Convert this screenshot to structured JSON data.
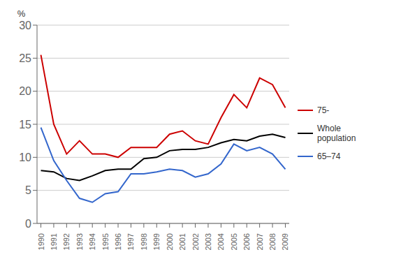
{
  "chart_data": {
    "type": "line",
    "x": [
      1990,
      1991,
      1992,
      1993,
      1994,
      1995,
      1996,
      1997,
      1998,
      1999,
      2000,
      2001,
      2002,
      2003,
      2004,
      2005,
      2006,
      2007,
      2008,
      2009
    ],
    "series": [
      {
        "name": "75-",
        "color": "#cc0000",
        "values": [
          25.5,
          15.0,
          10.5,
          12.5,
          10.5,
          10.5,
          10.0,
          11.5,
          11.5,
          11.5,
          13.5,
          14.0,
          12.5,
          12.0,
          16.0,
          19.5,
          17.5,
          22.0,
          21.0,
          17.5
        ]
      },
      {
        "name": "Whole\npopulation",
        "color": "#000000",
        "values": [
          8.0,
          7.8,
          6.8,
          6.5,
          7.2,
          8.0,
          8.2,
          8.2,
          9.8,
          10.0,
          11.0,
          11.2,
          11.2,
          11.5,
          12.2,
          12.7,
          12.5,
          13.2,
          13.5,
          13.0
        ]
      },
      {
        "name": "65–74",
        "color": "#3366cc",
        "values": [
          14.5,
          9.5,
          6.5,
          3.8,
          3.2,
          4.5,
          4.8,
          7.5,
          7.5,
          7.8,
          8.2,
          8.0,
          7.0,
          7.5,
          9.0,
          12.0,
          11.0,
          11.5,
          10.5,
          8.2
        ]
      }
    ],
    "ylabel": "%",
    "xlim": [
      1989.7,
      2009.3
    ],
    "xticks": [
      1990,
      1991,
      1992,
      1993,
      1994,
      1995,
      1996,
      1997,
      1998,
      1999,
      2000,
      2001,
      2002,
      2003,
      2004,
      2005,
      2006,
      2007,
      2008,
      2009
    ],
    "ylim": [
      0,
      30
    ],
    "yticks": [
      0,
      5,
      10,
      15,
      20,
      25,
      30
    ],
    "grid": true,
    "legend": "right"
  }
}
